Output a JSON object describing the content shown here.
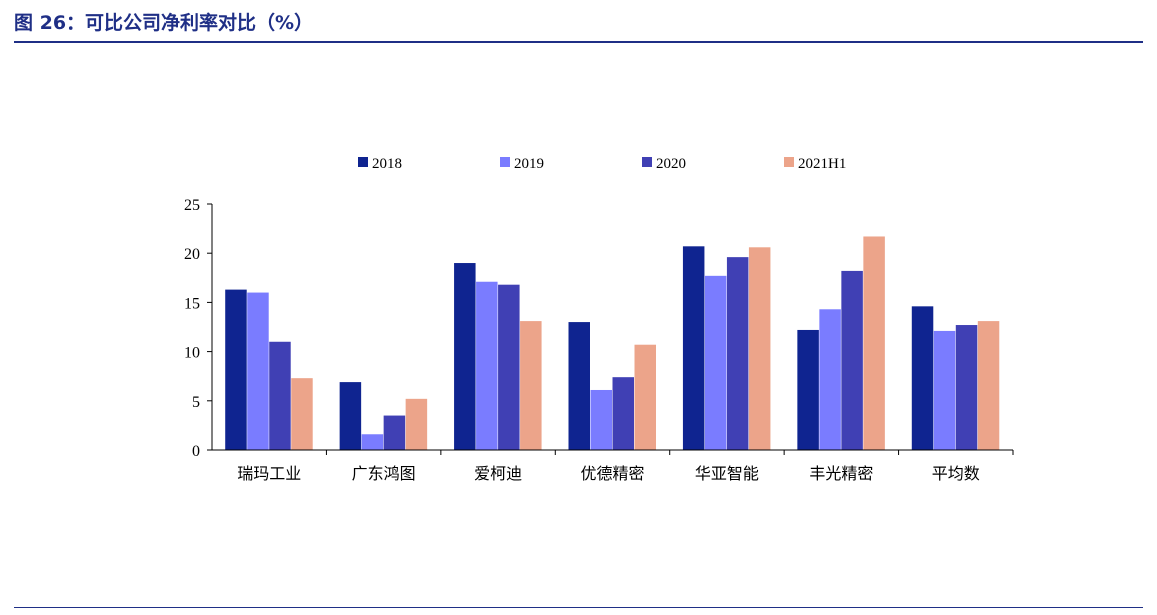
{
  "figure": {
    "title": "图 26：可比公司净利率对比（%）"
  },
  "chart_data": {
    "type": "bar",
    "categories": [
      "瑞玛工业",
      "广东鸿图",
      "爱柯迪",
      "优德精密",
      "华亚智能",
      "丰光精密",
      "平均数"
    ],
    "series": [
      {
        "name": "2018",
        "color": "#0f2490",
        "values": [
          16.3,
          6.9,
          19.0,
          13.0,
          20.7,
          12.2,
          14.6
        ]
      },
      {
        "name": "2019",
        "color": "#7a7cff",
        "values": [
          16.0,
          1.6,
          17.1,
          6.1,
          17.7,
          14.3,
          12.1
        ]
      },
      {
        "name": "2020",
        "color": "#4040b4",
        "values": [
          11.0,
          3.5,
          16.8,
          7.4,
          19.6,
          18.2,
          12.7
        ]
      },
      {
        "name": "2021H1",
        "color": "#eca48a",
        "values": [
          7.3,
          5.2,
          13.1,
          10.7,
          20.6,
          21.7,
          13.1
        ]
      }
    ],
    "ylim": [
      0,
      25
    ],
    "yticks": [
      "0",
      "5",
      "10",
      "15",
      "20",
      "25"
    ],
    "legend_position": "top-center",
    "grid": false
  }
}
